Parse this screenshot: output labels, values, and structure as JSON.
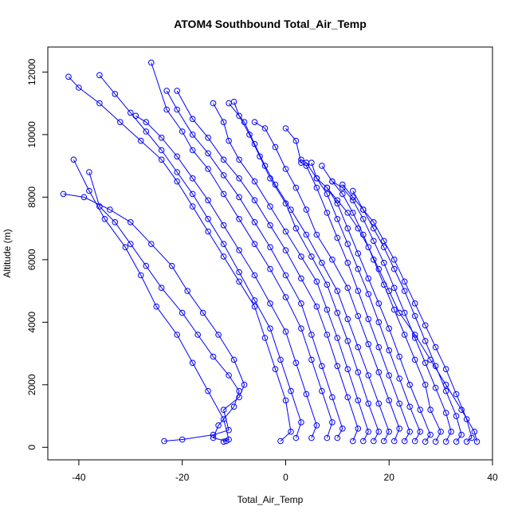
{
  "chart_data": {
    "type": "line",
    "title": "ATOM4 Southbound Total_Air_Temp",
    "xlabel": "Total_Air_Temp",
    "ylabel": "Altitude (m)",
    "xlim": [
      -46,
      40
    ],
    "ylim": [
      -400,
      12800
    ],
    "x_ticks": [
      "-40",
      "-20",
      "0",
      "20",
      "40"
    ],
    "x_tick_values": [
      -40,
      -20,
      0,
      20,
      40
    ],
    "y_ticks": [
      "0",
      "2000",
      "4000",
      "6000",
      "8000",
      "10000",
      "12000"
    ],
    "y_tick_values": [
      0,
      2000,
      4000,
      6000,
      8000,
      10000,
      12000
    ],
    "series_color": "#0000ff",
    "marker": "open-circle",
    "grid": false,
    "legend": "none",
    "series": [
      {
        "x": [
          -23.5,
          -20,
          -14,
          -11,
          -12,
          -9,
          -8,
          -10,
          -13,
          -16,
          -19,
          -22,
          -26,
          -30,
          -34,
          -39,
          -43
        ],
        "y": [
          200,
          250,
          400,
          550,
          1200,
          1600,
          2000,
          2800,
          3600,
          4300,
          5000,
          5800,
          6500,
          7200,
          7600,
          8000,
          8100
        ]
      },
      {
        "x": [
          -11.5,
          -14,
          -13,
          -10,
          -9,
          -11,
          -14,
          -17,
          -20,
          -24,
          -27,
          -30,
          -33,
          -36,
          -38
        ],
        "y": [
          200,
          300,
          700,
          1300,
          1800,
          2300,
          2900,
          3600,
          4300,
          5100,
          5800,
          6500,
          7200,
          7700,
          8800
        ]
      },
      {
        "x": [
          -12,
          -11,
          -12,
          -15,
          -18,
          -21,
          -25,
          -28,
          -31,
          -35,
          -38,
          -41
        ],
        "y": [
          180,
          250,
          900,
          1800,
          2700,
          3600,
          4500,
          5500,
          6400,
          7300,
          8200,
          9200
        ]
      },
      {
        "x": [
          -1,
          1,
          0,
          -2,
          -4,
          -6,
          -9,
          -12,
          -15,
          -18,
          -21,
          -24,
          -28,
          -32,
          -36,
          -40,
          -42
        ],
        "y": [
          200,
          500,
          1500,
          2500,
          3500,
          4500,
          5300,
          6100,
          6900,
          7700,
          8500,
          9200,
          9800,
          10400,
          11000,
          11500,
          11850
        ]
      },
      {
        "x": [
          2,
          3,
          1,
          -1,
          -3,
          -6,
          -9,
          -12,
          -15,
          -18,
          -21,
          -24,
          -27,
          -30,
          -33,
          -36
        ],
        "y": [
          300,
          800,
          1800,
          2800,
          3800,
          4700,
          5600,
          6500,
          7300,
          8100,
          8800,
          9500,
          10100,
          10700,
          11300,
          11900
        ]
      },
      {
        "x": [
          5,
          6,
          4,
          2,
          0,
          -3,
          -6,
          -9,
          -12,
          -15,
          -18,
          -21,
          -24,
          -27,
          -29
        ],
        "y": [
          300,
          700,
          1700,
          2700,
          3700,
          4600,
          5500,
          6300,
          7100,
          7900,
          8600,
          9300,
          9900,
          10400,
          10600
        ]
      },
      {
        "x": [
          8,
          9,
          7,
          5,
          3,
          0,
          -3,
          -6,
          -9,
          -12,
          -15,
          -18,
          -20,
          -23,
          -26
        ],
        "y": [
          300,
          800,
          1800,
          2800,
          3800,
          4800,
          5700,
          6500,
          7300,
          8100,
          8900,
          9500,
          10100,
          10800,
          12300
        ]
      },
      {
        "x": [
          10,
          11,
          9,
          7,
          5,
          3,
          0,
          -3,
          -6,
          -9,
          -12,
          -15,
          -18,
          -21,
          -23
        ],
        "y": [
          300,
          600,
          1600,
          2600,
          3600,
          4600,
          5500,
          6400,
          7200,
          8000,
          8700,
          9400,
          10000,
          10800,
          11400
        ]
      },
      {
        "x": [
          13,
          14,
          12,
          10,
          8,
          6,
          3,
          0,
          -3,
          -6,
          -9,
          -12,
          -15,
          -18,
          -21
        ],
        "y": [
          200,
          600,
          1600,
          2600,
          3600,
          4500,
          5400,
          6300,
          7100,
          7900,
          8600,
          9200,
          9900,
          10500,
          11400
        ]
      },
      {
        "x": [
          15,
          16,
          14,
          12,
          10,
          8,
          6,
          3,
          0,
          -3,
          -6,
          -9,
          -11,
          -12,
          -14
        ],
        "y": [
          200,
          500,
          1500,
          2500,
          3500,
          4400,
          5300,
          6100,
          6900,
          7700,
          8500,
          9200,
          9800,
          10400,
          11000
        ]
      },
      {
        "x": [
          17,
          18,
          16,
          14,
          12,
          10,
          8,
          5,
          2,
          0,
          -3,
          -5,
          -7,
          -9,
          -10
        ],
        "y": [
          200,
          500,
          1400,
          2400,
          3400,
          4300,
          5200,
          6100,
          7000,
          7800,
          8600,
          9300,
          10000,
          10600,
          11050
        ]
      },
      {
        "x": [
          19,
          20,
          18,
          16,
          14,
          12,
          10,
          7,
          4,
          1,
          -2,
          -4,
          -6,
          -8,
          -11
        ],
        "y": [
          200,
          500,
          1400,
          2300,
          3200,
          4100,
          5000,
          5900,
          6800,
          7600,
          8400,
          9000,
          9700,
          10400,
          11000
        ]
      },
      {
        "x": [
          21,
          22,
          20,
          18,
          16,
          14,
          12,
          9,
          6,
          4,
          2,
          0,
          -2,
          -4,
          -6
        ],
        "y": [
          200,
          600,
          1500,
          2400,
          3300,
          4200,
          5100,
          6000,
          6800,
          7600,
          8300,
          8900,
          9600,
          10200,
          10400
        ]
      },
      {
        "x": [
          23,
          24,
          22,
          20,
          18,
          16,
          14,
          12,
          10,
          8,
          6,
          4,
          3,
          2,
          0
        ],
        "y": [
          200,
          500,
          1400,
          2300,
          3200,
          4100,
          5000,
          5900,
          6700,
          7500,
          8300,
          9000,
          9100,
          9800,
          10200
        ]
      },
      {
        "x": [
          25,
          26,
          24,
          22,
          20,
          18,
          16,
          14,
          12,
          10,
          8,
          6,
          4,
          3
        ],
        "y": [
          200,
          500,
          1300,
          2200,
          3100,
          4000,
          4900,
          5700,
          6500,
          7300,
          8100,
          8600,
          9100,
          9200
        ]
      },
      {
        "x": [
          27,
          28,
          26,
          24,
          22,
          20,
          18,
          16,
          14,
          12,
          10,
          8,
          6,
          5
        ],
        "y": [
          180,
          400,
          1200,
          2000,
          2900,
          3800,
          4600,
          5400,
          6200,
          7000,
          7800,
          8300,
          8600,
          9100
        ]
      },
      {
        "x": [
          29,
          30,
          28,
          27,
          25,
          23,
          21,
          19,
          17,
          15,
          13,
          11,
          9,
          7
        ],
        "y": [
          180,
          500,
          1200,
          2000,
          2800,
          3600,
          4400,
          5200,
          6000,
          6800,
          7500,
          8100,
          8500,
          9000
        ]
      },
      {
        "x": [
          31,
          32,
          31,
          29,
          27,
          25,
          23,
          21,
          19,
          17,
          15,
          13,
          11,
          9
        ],
        "y": [
          180,
          500,
          1100,
          1900,
          2700,
          3500,
          4300,
          5100,
          5900,
          6600,
          7300,
          7900,
          8300,
          8500
        ]
      },
      {
        "x": [
          33,
          34,
          33,
          31,
          29,
          27,
          25,
          23,
          21,
          19,
          17,
          15,
          13,
          11
        ],
        "y": [
          180,
          400,
          1000,
          1800,
          2600,
          3400,
          4200,
          5000,
          5700,
          6400,
          7000,
          7600,
          8000,
          8400
        ]
      },
      {
        "x": [
          35,
          36,
          35,
          33,
          31,
          29,
          27,
          25,
          23,
          21,
          19,
          17,
          15,
          13
        ],
        "y": [
          180,
          300,
          900,
          1700,
          2500,
          3200,
          3900,
          4600,
          5300,
          6000,
          6600,
          7200,
          7600,
          8200
        ]
      },
      {
        "x": [
          37,
          36.5,
          34,
          31,
          28,
          25,
          22,
          20,
          18,
          16,
          14,
          12,
          10,
          8
        ],
        "y": [
          180,
          500,
          1200,
          2000,
          2800,
          3600,
          4300,
          5000,
          5700,
          6400,
          7000,
          7500,
          7900,
          8300
        ]
      }
    ]
  }
}
